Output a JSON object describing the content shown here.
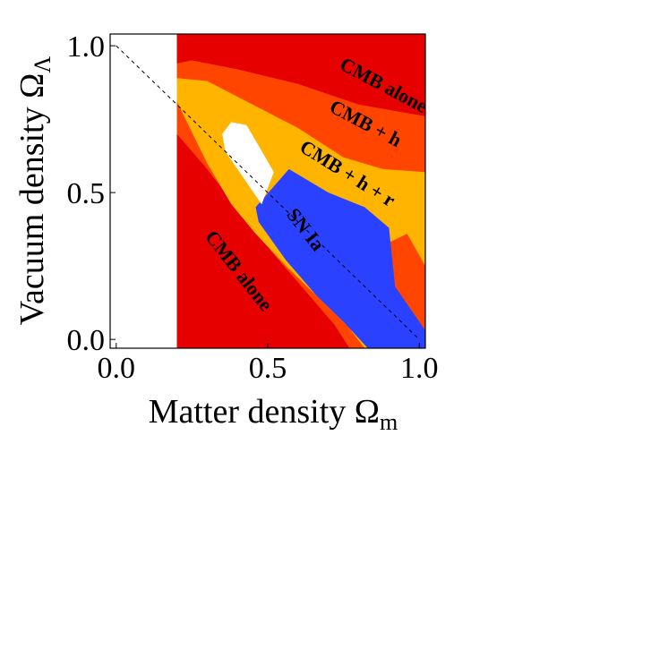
{
  "chart_data": {
    "type": "area",
    "xlabel": "Matter density Ω",
    "xlabel_sub": "m",
    "ylabel": "Vacuum density Ω",
    "ylabel_sub": "Λ",
    "xlim": [
      -0.02,
      1.02
    ],
    "ylim": [
      -0.03,
      1.04
    ],
    "x_ticks": [
      "0.0",
      "0.5",
      "1.0"
    ],
    "x_tick_values": [
      0.0,
      0.5,
      1.0
    ],
    "y_ticks": [
      "0.0",
      "0.5",
      "1.0"
    ],
    "y_tick_values": [
      0.0,
      0.5,
      1.0
    ],
    "colors": {
      "cmb_alone": "#e60000",
      "cmb_h": "#ff4500",
      "cmb_h_r": "#ffb400",
      "sn_ia": "#2a42ff",
      "combined": "#ffffff",
      "background": "#ffffff",
      "guide": "#000000"
    },
    "guide_line": {
      "x": [
        0.0,
        1.0
      ],
      "y": [
        1.0,
        0.0
      ]
    },
    "regions": [
      {
        "key": "cmb_alone",
        "label": "CMB alone",
        "polygon": [
          [
            0.2,
            1.04
          ],
          [
            1.02,
            1.04
          ],
          [
            1.02,
            -0.03
          ],
          [
            0.2,
            -0.03
          ]
        ]
      },
      {
        "key": "cmb_h",
        "label": "CMB + h",
        "polygon": [
          [
            0.2,
            0.94
          ],
          [
            0.25,
            0.95
          ],
          [
            0.4,
            0.92
          ],
          [
            0.6,
            0.87
          ],
          [
            0.8,
            0.8
          ],
          [
            1.02,
            0.76
          ],
          [
            1.02,
            -0.03
          ],
          [
            0.77,
            -0.03
          ],
          [
            0.72,
            0.05
          ],
          [
            0.62,
            0.17
          ],
          [
            0.52,
            0.29
          ],
          [
            0.42,
            0.42
          ],
          [
            0.3,
            0.58
          ],
          [
            0.2,
            0.7
          ]
        ]
      },
      {
        "key": "cmb_h_r",
        "label": "CMB + h + r",
        "polygon": [
          [
            0.2,
            0.89
          ],
          [
            0.3,
            0.88
          ],
          [
            0.45,
            0.8
          ],
          [
            0.6,
            0.72
          ],
          [
            0.75,
            0.62
          ],
          [
            0.88,
            0.58
          ],
          [
            1.02,
            0.57
          ],
          [
            1.02,
            0.25
          ],
          [
            0.96,
            0.36
          ],
          [
            0.9,
            0.33
          ],
          [
            0.88,
            0.15
          ],
          [
            0.85,
            -0.03
          ],
          [
            0.82,
            -0.03
          ],
          [
            0.76,
            0.05
          ],
          [
            0.66,
            0.15
          ],
          [
            0.56,
            0.25
          ],
          [
            0.46,
            0.36
          ],
          [
            0.38,
            0.46
          ],
          [
            0.3,
            0.6
          ],
          [
            0.2,
            0.81
          ]
        ]
      },
      {
        "key": "sn_ia",
        "label": "SN Ia",
        "polygon": [
          [
            0.46,
            0.45
          ],
          [
            0.57,
            0.58
          ],
          [
            0.7,
            0.5
          ],
          [
            0.82,
            0.45
          ],
          [
            0.9,
            0.38
          ],
          [
            0.92,
            0.18
          ],
          [
            1.02,
            0.03
          ],
          [
            1.02,
            -0.03
          ],
          [
            0.83,
            -0.03
          ],
          [
            0.75,
            0.06
          ],
          [
            0.66,
            0.15
          ],
          [
            0.56,
            0.27
          ],
          [
            0.47,
            0.4
          ]
        ]
      },
      {
        "key": "combined",
        "label": "",
        "polygon": [
          [
            0.35,
            0.7
          ],
          [
            0.38,
            0.74
          ],
          [
            0.43,
            0.73
          ],
          [
            0.47,
            0.66
          ],
          [
            0.52,
            0.57
          ],
          [
            0.48,
            0.46
          ],
          [
            0.44,
            0.52
          ],
          [
            0.4,
            0.58
          ],
          [
            0.36,
            0.64
          ]
        ]
      }
    ],
    "annotations": [
      {
        "text": "CMB alone",
        "x": 0.88,
        "y": 0.86,
        "rotation": 28
      },
      {
        "text": "CMB + h",
        "x": 0.82,
        "y": 0.73,
        "rotation": 28
      },
      {
        "text": "CMB + h + r",
        "x": 0.76,
        "y": 0.56,
        "rotation": 32
      },
      {
        "text": "SN Ia",
        "x": 0.62,
        "y": 0.37,
        "rotation": 52
      },
      {
        "text": "CMB alone",
        "x": 0.4,
        "y": 0.23,
        "rotation": 52
      }
    ]
  }
}
